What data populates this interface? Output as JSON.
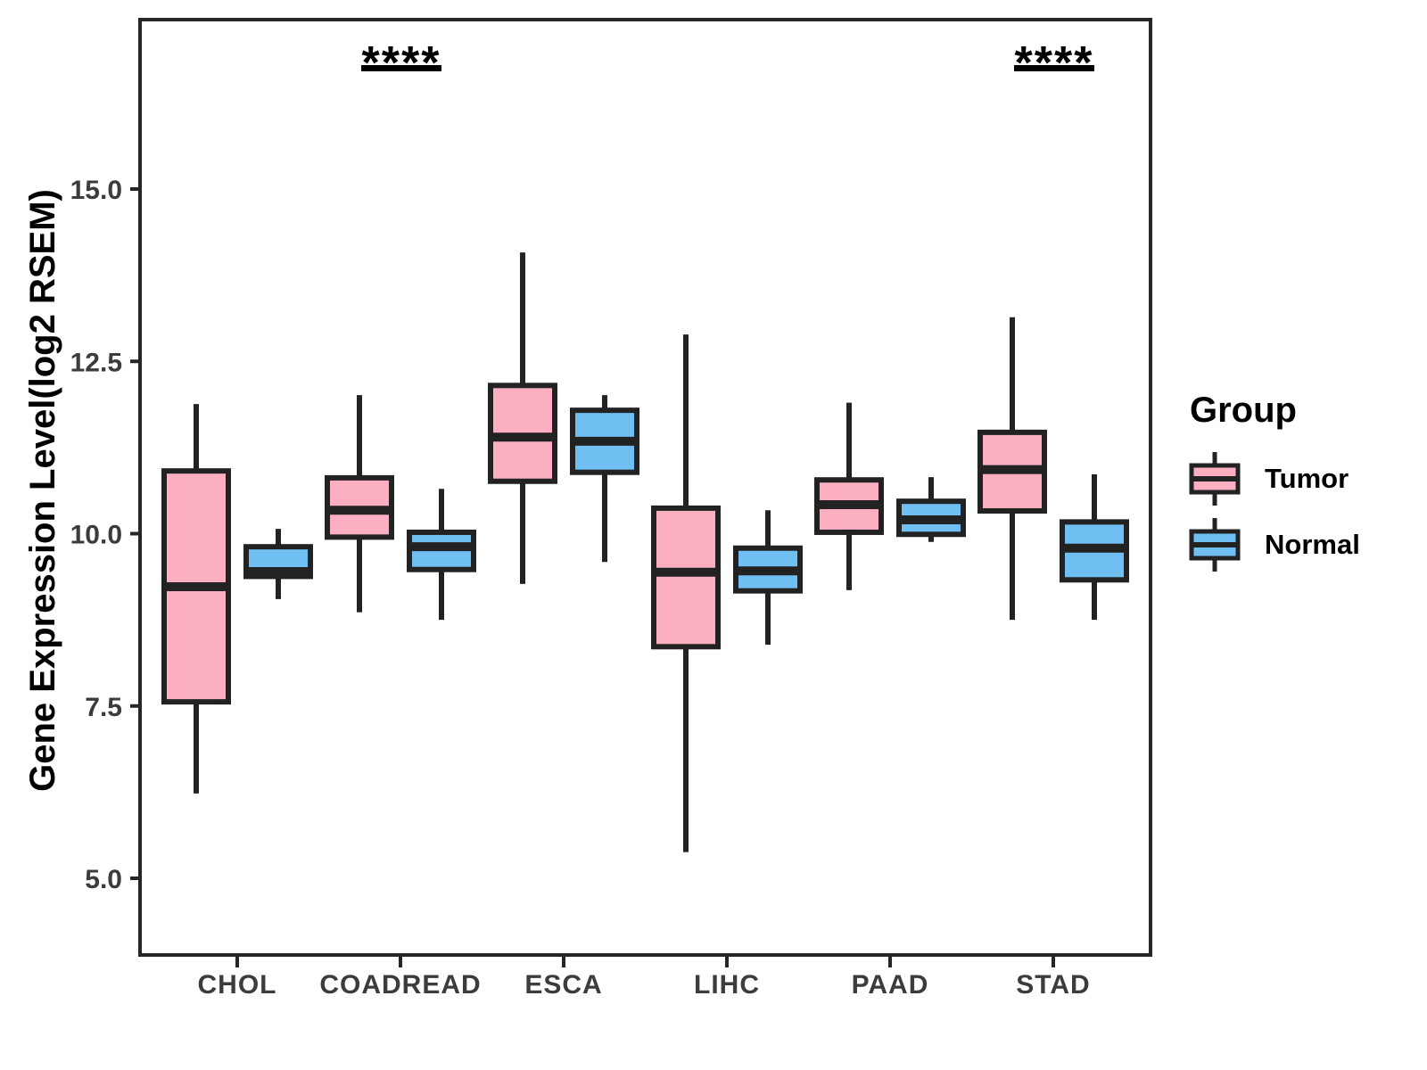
{
  "chart_data": {
    "type": "grouped_boxplot",
    "title": "",
    "xlabel": "",
    "ylabel": "Gene Expression Level(log2 RSEM)",
    "categories": [
      "CHOL",
      "COADREAD",
      "ESCA",
      "LIHC",
      "PAAD",
      "STAD"
    ],
    "y_ticks": [
      "5.0",
      "7.5",
      "10.0",
      "12.5",
      "15.0"
    ],
    "y_tick_values": [
      5.0,
      7.5,
      10.0,
      12.5,
      15.0
    ],
    "ylim": [
      3.9,
      17.4
    ],
    "grid": false,
    "legend": {
      "title": "Group",
      "position": "right",
      "entries": [
        {
          "label": "Tumor",
          "color": "#FBAFC1"
        },
        {
          "label": "Normal",
          "color": "#70BFF2"
        }
      ]
    },
    "series": [
      {
        "name": "Tumor",
        "color": "#FBAFC1",
        "boxes": [
          {
            "category": "CHOL",
            "whisker_low": 6.23,
            "q1": 7.56,
            "median": 9.23,
            "q3": 10.91,
            "whisker_high": 11.88
          },
          {
            "category": "COADREAD",
            "whisker_low": 8.86,
            "q1": 9.95,
            "median": 10.34,
            "q3": 10.81,
            "whisker_high": 12.01
          },
          {
            "category": "ESCA",
            "whisker_low": 9.27,
            "q1": 10.76,
            "median": 11.4,
            "q3": 12.15,
            "whisker_high": 14.08
          },
          {
            "category": "LIHC",
            "whisker_low": 5.38,
            "q1": 8.36,
            "median": 9.44,
            "q3": 10.37,
            "whisker_high": 12.89
          },
          {
            "category": "PAAD",
            "whisker_low": 9.18,
            "q1": 10.02,
            "median": 10.42,
            "q3": 10.78,
            "whisker_high": 11.9
          },
          {
            "category": "STAD",
            "whisker_low": 8.75,
            "q1": 10.33,
            "median": 10.93,
            "q3": 11.47,
            "whisker_high": 13.14
          }
        ]
      },
      {
        "name": "Normal",
        "color": "#70BFF2",
        "boxes": [
          {
            "category": "CHOL",
            "whisker_low": 9.05,
            "q1": 9.38,
            "median": 9.45,
            "q3": 9.81,
            "whisker_high": 10.07
          },
          {
            "category": "COADREAD",
            "whisker_low": 8.75,
            "q1": 9.48,
            "median": 9.81,
            "q3": 10.02,
            "whisker_high": 10.65
          },
          {
            "category": "ESCA",
            "whisker_low": 9.59,
            "q1": 10.89,
            "median": 11.34,
            "q3": 11.79,
            "whisker_high": 12.01
          },
          {
            "category": "LIHC",
            "whisker_low": 8.39,
            "q1": 9.17,
            "median": 9.46,
            "q3": 9.79,
            "whisker_high": 10.34
          },
          {
            "category": "PAAD",
            "whisker_low": 9.88,
            "q1": 9.99,
            "median": 10.2,
            "q3": 10.47,
            "whisker_high": 10.82
          },
          {
            "category": "STAD",
            "whisker_low": 8.75,
            "q1": 9.33,
            "median": 9.79,
            "q3": 10.17,
            "whisker_high": 10.86
          }
        ]
      }
    ],
    "significance": [
      {
        "category": "COADREAD",
        "label": "****"
      },
      {
        "category": "STAD",
        "label": "****"
      }
    ],
    "colors": {
      "box_border": "#222222",
      "panel_border": "#262626",
      "tick_label": "#3C3C3C",
      "significance": "#000000",
      "background": "#FFFFFF"
    }
  }
}
